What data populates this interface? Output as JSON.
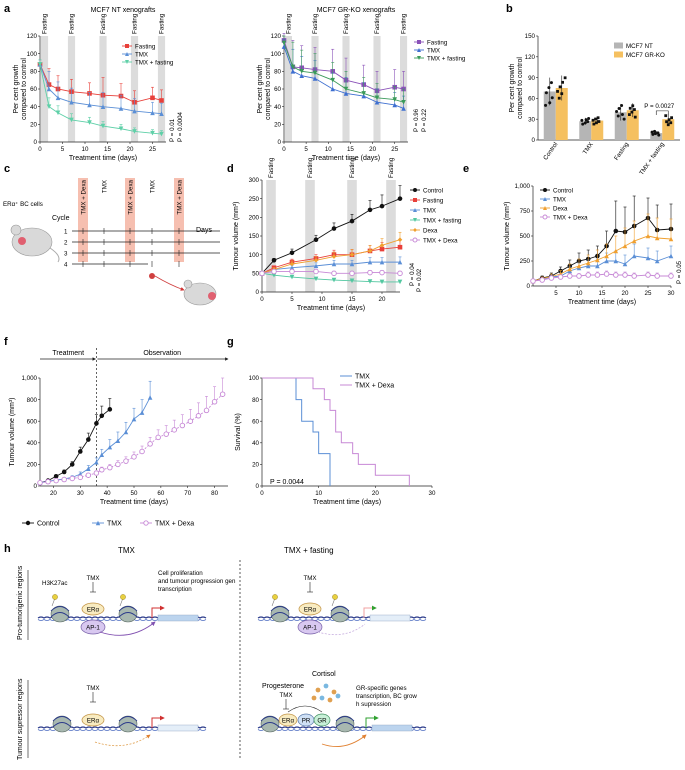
{
  "panel_letters": {
    "a": "a",
    "b": "b",
    "c": "c",
    "d": "d",
    "e": "e",
    "f": "f",
    "g": "g",
    "h": "h"
  },
  "colors": {
    "fasting": "#e8403a",
    "tmx": "#5b8fd6",
    "tmx_fasting": "#5fd0a8",
    "tmx_fasting_d": "#52c7a0",
    "control": "#111111",
    "dexa": "#f0a030",
    "tmx_dexa": "#c788d6",
    "gr_fasting": "#8a52b8",
    "gr_tmx": "#3e6fd0",
    "gr_tmx_fasting": "#3a9a5a",
    "mcf7_nt": "#b5b5b5",
    "mcf7_grko": "#f5c060",
    "shade": "#dcdcdc",
    "treat_bar": "#f6bfb0"
  },
  "chart_data": [
    {
      "id": "a1",
      "type": "line",
      "title": "MCF7 NT xenografts",
      "xlabel": "Treatment time (days)",
      "ylabel": "Per cent growth compared to control",
      "xlim": [
        0,
        28
      ],
      "ylim": [
        0,
        120
      ],
      "xticks": [
        "0",
        "5",
        "10",
        "15",
        "20",
        "25"
      ],
      "yticks": [
        "0",
        "20",
        "40",
        "60",
        "80",
        "100",
        "120"
      ],
      "fasting_label": "Fasting",
      "x": [
        0,
        2,
        4,
        7,
        11,
        14,
        18,
        21,
        25,
        27
      ],
      "series": [
        {
          "name": "Fasting",
          "values": [
            88,
            65,
            60,
            57,
            55,
            53,
            52,
            45,
            50,
            47
          ],
          "err": [
            5,
            18,
            15,
            14,
            12,
            20,
            14,
            13,
            12,
            12
          ]
        },
        {
          "name": "TMX",
          "values": [
            88,
            60,
            50,
            45,
            42,
            40,
            38,
            35,
            33,
            32
          ],
          "err": [
            5,
            20,
            18,
            16,
            14,
            16,
            15,
            14,
            12,
            12
          ]
        },
        {
          "name": "TMX + fasting",
          "values": [
            88,
            40,
            33,
            25,
            22,
            18,
            15,
            12,
            10,
            9
          ],
          "err": [
            5,
            10,
            8,
            7,
            6,
            5,
            5,
            4,
            4,
            4
          ]
        }
      ],
      "pvalues": [
        "P = 0.01",
        "P = 0.0004"
      ]
    },
    {
      "id": "a2",
      "type": "line",
      "title": "MCF7 GR-KO xenografts",
      "xlabel": "Treatment time (days)",
      "ylabel": "Per cent growth compared to control",
      "xlim": [
        0,
        28
      ],
      "ylim": [
        0,
        120
      ],
      "xticks": [
        "0",
        "5",
        "10",
        "15",
        "20",
        "25"
      ],
      "yticks": [
        "0",
        "20",
        "40",
        "60",
        "80",
        "100",
        "120"
      ],
      "fasting_label": "Fasting",
      "x": [
        0,
        2,
        4,
        7,
        11,
        14,
        18,
        21,
        25,
        27
      ],
      "series": [
        {
          "name": "Fasting",
          "values": [
            115,
            85,
            84,
            82,
            80,
            70,
            65,
            58,
            62,
            60
          ],
          "err": [
            8,
            30,
            25,
            25,
            25,
            25,
            22,
            22,
            20,
            20
          ]
        },
        {
          "name": "TMX",
          "values": [
            108,
            80,
            75,
            72,
            60,
            55,
            52,
            45,
            42,
            38
          ],
          "err": [
            8,
            25,
            22,
            20,
            18,
            18,
            15,
            15,
            14,
            14
          ]
        },
        {
          "name": "TMX + fasting",
          "values": [
            112,
            85,
            80,
            78,
            70,
            60,
            55,
            50,
            48,
            45
          ],
          "err": [
            8,
            28,
            24,
            22,
            20,
            20,
            18,
            16,
            15,
            15
          ]
        }
      ],
      "pvalues": [
        "P = 0.96",
        "P = 0.22"
      ]
    },
    {
      "id": "b",
      "type": "bar",
      "title": "",
      "ylabel": "Per cent growth compared to control",
      "ylim": [
        0,
        150
      ],
      "yticks": [
        "0",
        "30",
        "60",
        "90",
        "120",
        "150"
      ],
      "categories": [
        "Control",
        "TMX",
        "Fasting",
        "TMX + fasting"
      ],
      "series": [
        {
          "name": "MCF7 NT",
          "values": [
            70,
            27,
            40,
            10
          ],
          "err": [
            20,
            5,
            12,
            3
          ]
        },
        {
          "name": "MCF7 GR-KO",
          "values": [
            75,
            28,
            43,
            30
          ],
          "err": [
            18,
            5,
            10,
            8
          ]
        }
      ],
      "pvalue": "P = 0.0027"
    },
    {
      "id": "d",
      "type": "line",
      "xlabel": "Treatment time (days)",
      "ylabel": "Tumour volume (mm³)",
      "xlim": [
        0,
        23
      ],
      "ylim": [
        0,
        300
      ],
      "xticks": [
        "0",
        "5",
        "10",
        "15",
        "20"
      ],
      "yticks": [
        "0",
        "50",
        "100",
        "150",
        "200",
        "250",
        "300"
      ],
      "fasting_label": "Fasting",
      "x": [
        0,
        2,
        5,
        9,
        12,
        15,
        18,
        20,
        23
      ],
      "series": [
        {
          "name": "Control",
          "values": [
            50,
            85,
            105,
            140,
            170,
            190,
            220,
            230,
            250
          ],
          "err": [
            3,
            5,
            10,
            12,
            15,
            18,
            25,
            30,
            35
          ]
        },
        {
          "name": "Fasting",
          "values": [
            50,
            65,
            80,
            90,
            100,
            100,
            110,
            115,
            120
          ],
          "err": [
            3,
            5,
            8,
            10,
            12,
            14,
            15,
            18,
            20
          ]
        },
        {
          "name": "TMX",
          "values": [
            50,
            60,
            65,
            70,
            75,
            75,
            80,
            80,
            80
          ],
          "err": [
            3,
            5,
            6,
            8,
            10,
            10,
            12,
            12,
            14
          ]
        },
        {
          "name": "TMX + fasting",
          "values": [
            50,
            45,
            40,
            35,
            32,
            30,
            28,
            27,
            27
          ],
          "err": [
            3,
            4,
            4,
            4,
            4,
            4,
            4,
            4,
            4
          ]
        },
        {
          "name": "Dexa",
          "values": [
            50,
            60,
            75,
            85,
            95,
            100,
            110,
            125,
            140
          ],
          "err": [
            3,
            5,
            8,
            10,
            12,
            14,
            15,
            18,
            20
          ]
        },
        {
          "name": "TMX + Dexa",
          "values": [
            50,
            55,
            55,
            55,
            50,
            50,
            52,
            52,
            50
          ],
          "err": [
            3,
            5,
            6,
            6,
            6,
            6,
            6,
            6,
            6
          ]
        }
      ],
      "pvalues": [
        "P = 0.04",
        "P = 0.02"
      ]
    },
    {
      "id": "e",
      "type": "line",
      "xlabel": "Treatment time (days)",
      "ylabel": "Tumour volume (mm³)",
      "xlim": [
        0,
        30
      ],
      "ylim": [
        0,
        1000
      ],
      "xticks": [
        "5",
        "10",
        "15",
        "20",
        "25",
        "30"
      ],
      "yticks": [
        "0",
        "250",
        "500",
        "750",
        "1,000"
      ],
      "x": [
        0,
        2,
        4,
        6,
        8,
        10,
        12,
        14,
        16,
        18,
        20,
        22,
        25,
        27,
        30
      ],
      "series": [
        {
          "name": "Control",
          "values": [
            50,
            80,
            100,
            150,
            200,
            250,
            270,
            300,
            400,
            550,
            540,
            600,
            680,
            560,
            570
          ],
          "err": [
            10,
            20,
            30,
            40,
            60,
            80,
            90,
            100,
            150,
            300,
            250,
            300,
            200,
            250,
            250
          ]
        },
        {
          "name": "TMX",
          "values": [
            50,
            70,
            90,
            100,
            150,
            180,
            200,
            200,
            250,
            250,
            220,
            300,
            280,
            250,
            300
          ],
          "err": [
            10,
            15,
            20,
            30,
            40,
            50,
            60,
            70,
            80,
            100,
            90,
            120,
            100,
            100,
            100
          ]
        },
        {
          "name": "Dexa",
          "values": [
            50,
            75,
            95,
            120,
            170,
            200,
            230,
            260,
            300,
            350,
            400,
            450,
            500,
            480,
            470
          ],
          "err": [
            10,
            15,
            25,
            35,
            50,
            70,
            80,
            100,
            120,
            150,
            180,
            200,
            220,
            200,
            200
          ]
        },
        {
          "name": "TMX + Dexa",
          "values": [
            50,
            60,
            80,
            90,
            100,
            100,
            110,
            110,
            120,
            110,
            110,
            100,
            110,
            100,
            100
          ],
          "err": [
            10,
            15,
            20,
            20,
            25,
            25,
            30,
            30,
            30,
            30,
            30,
            30,
            30,
            30,
            30
          ]
        }
      ],
      "pvalue": "P = 0.05"
    },
    {
      "id": "f",
      "type": "line",
      "xlabel": "Treatment time (days)",
      "ylabel": "Tumour volume (mm³)",
      "xlim": [
        15,
        85
      ],
      "ylim": [
        0,
        1000
      ],
      "xticks": [
        "20",
        "30",
        "40",
        "50",
        "60",
        "70",
        "80"
      ],
      "yticks": [
        "0",
        "200",
        "400",
        "600",
        "800",
        "1,000"
      ],
      "treatment_label": "Treatment",
      "observation_label": "Observation",
      "divider_x": 36,
      "series": [
        {
          "name": "Control",
          "x": [
            15,
            18,
            21,
            24,
            27,
            30,
            33,
            36,
            38,
            41
          ],
          "values": [
            30,
            50,
            90,
            130,
            200,
            320,
            430,
            580,
            650,
            710
          ],
          "err": [
            5,
            8,
            12,
            18,
            25,
            40,
            60,
            80,
            90,
            100
          ]
        },
        {
          "name": "TMX",
          "x": [
            15,
            18,
            21,
            24,
            27,
            30,
            33,
            36,
            38,
            41,
            44,
            47,
            50,
            53,
            56
          ],
          "values": [
            30,
            45,
            55,
            65,
            80,
            110,
            160,
            220,
            290,
            360,
            420,
            500,
            620,
            680,
            820
          ],
          "err": [
            5,
            8,
            10,
            12,
            15,
            20,
            30,
            40,
            50,
            70,
            80,
            90,
            100,
            120,
            150
          ]
        },
        {
          "name": "TMX + Dexa",
          "x": [
            15,
            18,
            21,
            24,
            27,
            30,
            33,
            36,
            38,
            41,
            44,
            47,
            50,
            53,
            56,
            59,
            62,
            65,
            68,
            71,
            74,
            77,
            80,
            83
          ],
          "values": [
            30,
            40,
            50,
            60,
            70,
            80,
            100,
            120,
            150,
            170,
            200,
            230,
            270,
            320,
            390,
            450,
            480,
            520,
            560,
            600,
            650,
            700,
            780,
            850
          ],
          "err": [
            5,
            8,
            10,
            10,
            12,
            15,
            18,
            20,
            25,
            30,
            35,
            40,
            45,
            50,
            60,
            70,
            80,
            90,
            100,
            110,
            120,
            130,
            140,
            150
          ]
        }
      ]
    },
    {
      "id": "g",
      "type": "line",
      "xlabel": "Treatment time (days)",
      "ylabel": "Survival (%)",
      "xlim": [
        0,
        30
      ],
      "ylim": [
        0,
        100
      ],
      "xticks": [
        "0",
        "10",
        "20",
        "30"
      ],
      "yticks": [
        "0",
        "20",
        "40",
        "60",
        "80",
        "100"
      ],
      "series": [
        {
          "name": "TMX",
          "x": [
            0,
            5,
            6,
            7,
            9,
            10,
            11,
            12,
            12
          ],
          "values": [
            100,
            100,
            80,
            60,
            50,
            30,
            30,
            10,
            0
          ]
        },
        {
          "name": "TMX + Dexa",
          "x": [
            0,
            7,
            9,
            11,
            12,
            13,
            14,
            16,
            17,
            18,
            20,
            25,
            26
          ],
          "values": [
            100,
            100,
            90,
            80,
            70,
            50,
            40,
            30,
            20,
            20,
            10,
            10,
            0
          ]
        }
      ],
      "pvalue": "P = 0.0044"
    }
  ],
  "panel_c": {
    "receptor_label": "ERα⁺ BC cells",
    "cycle_label": "Cycle",
    "days_label": "Days",
    "cycles": [
      "1",
      "2",
      "3",
      "4"
    ],
    "columns": [
      "TMX + Dexa",
      "TMX",
      "TMX + Dexa",
      "TMX",
      "TMX + Dexa"
    ]
  },
  "panel_h": {
    "col_tmx": "TMX",
    "col_tmx_fasting": "TMX + fasting",
    "row_pro": "Pro-tumorigenic regions",
    "row_sup": "Tumour supressor regions",
    "h3k27ac": "H3K27ac",
    "tmx_label": "TMX",
    "era": "ERα",
    "ap1": "AP-1",
    "prolif": "Cell proliferation and tumour progression gene transcription",
    "cortisol": "Cortisol",
    "progesterone": "Progesterone",
    "pr": "PR",
    "gr": "GR",
    "gr_specific": "GR-specific genes transcription, BC growth supression"
  }
}
